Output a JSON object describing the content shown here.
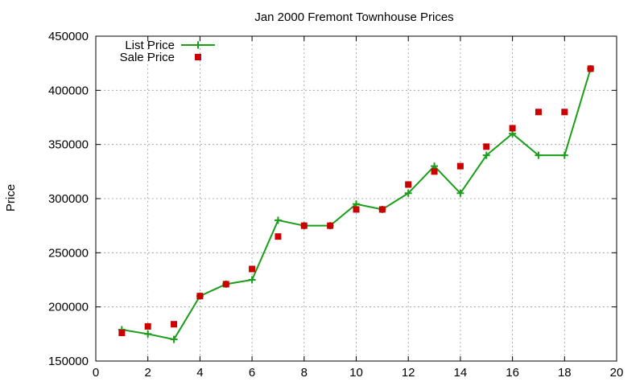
{
  "chart_data": {
    "type": "line",
    "title": "Jan 2000 Fremont Townhouse Prices",
    "xlabel": "",
    "ylabel": "Price",
    "xlim": [
      0,
      20
    ],
    "ylim": [
      150000,
      450000
    ],
    "xticks": [
      0,
      2,
      4,
      6,
      8,
      10,
      12,
      14,
      16,
      18,
      20
    ],
    "yticks": [
      150000,
      200000,
      250000,
      300000,
      350000,
      400000,
      450000
    ],
    "grid": true,
    "legend_position": "top-left",
    "series": [
      {
        "name": "List Price",
        "type": "line",
        "marker": "plus",
        "color": "#1a9e1a",
        "x": [
          1,
          2,
          3,
          4,
          5,
          6,
          7,
          8,
          9,
          10,
          11,
          12,
          13,
          14,
          15,
          16,
          17,
          18,
          19
        ],
        "y": [
          179000,
          175000,
          170000,
          210000,
          221000,
          225000,
          280000,
          275000,
          275000,
          295000,
          290000,
          305000,
          330000,
          305000,
          340000,
          360000,
          340000,
          340000,
          420000
        ]
      },
      {
        "name": "Sale Price",
        "type": "scatter",
        "marker": "square",
        "color": "#cc0000",
        "x": [
          1,
          2,
          3,
          4,
          5,
          6,
          7,
          8,
          9,
          10,
          11,
          12,
          13,
          14,
          15,
          16,
          17,
          18,
          19
        ],
        "y": [
          176000,
          182000,
          184000,
          210000,
          221000,
          235000,
          265000,
          275000,
          275000,
          290000,
          290000,
          313000,
          325000,
          330000,
          348000,
          365000,
          380000,
          380000,
          420000
        ]
      }
    ]
  }
}
